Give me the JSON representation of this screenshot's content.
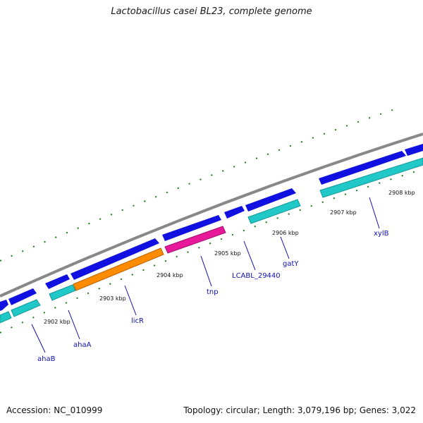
{
  "title": "Lactobacillus casei BL23, complete genome",
  "accession": "Accession: NC_010999",
  "topology": "Topology: circular; Length: 3,079,196 bp; Genes: 3,022",
  "colors": {
    "backbone": "#888888",
    "tick": "#1a7a1a",
    "cds": "#1010e0",
    "rna": "#20c8c8",
    "orange": "#ff8c00",
    "magenta": "#e8189a",
    "label": "#1010b0"
  },
  "kbp_labels": [
    "2902 kbp",
    "2903 kbp",
    "2904 kbp",
    "2905 kbp",
    "2906 kbp",
    "2907 kbp",
    "2908 kbp"
  ],
  "gene_labels": [
    "ahaB",
    "ahaA",
    "licR",
    "tnp",
    "LCABL_29440",
    "gatY",
    "xylB"
  ]
}
